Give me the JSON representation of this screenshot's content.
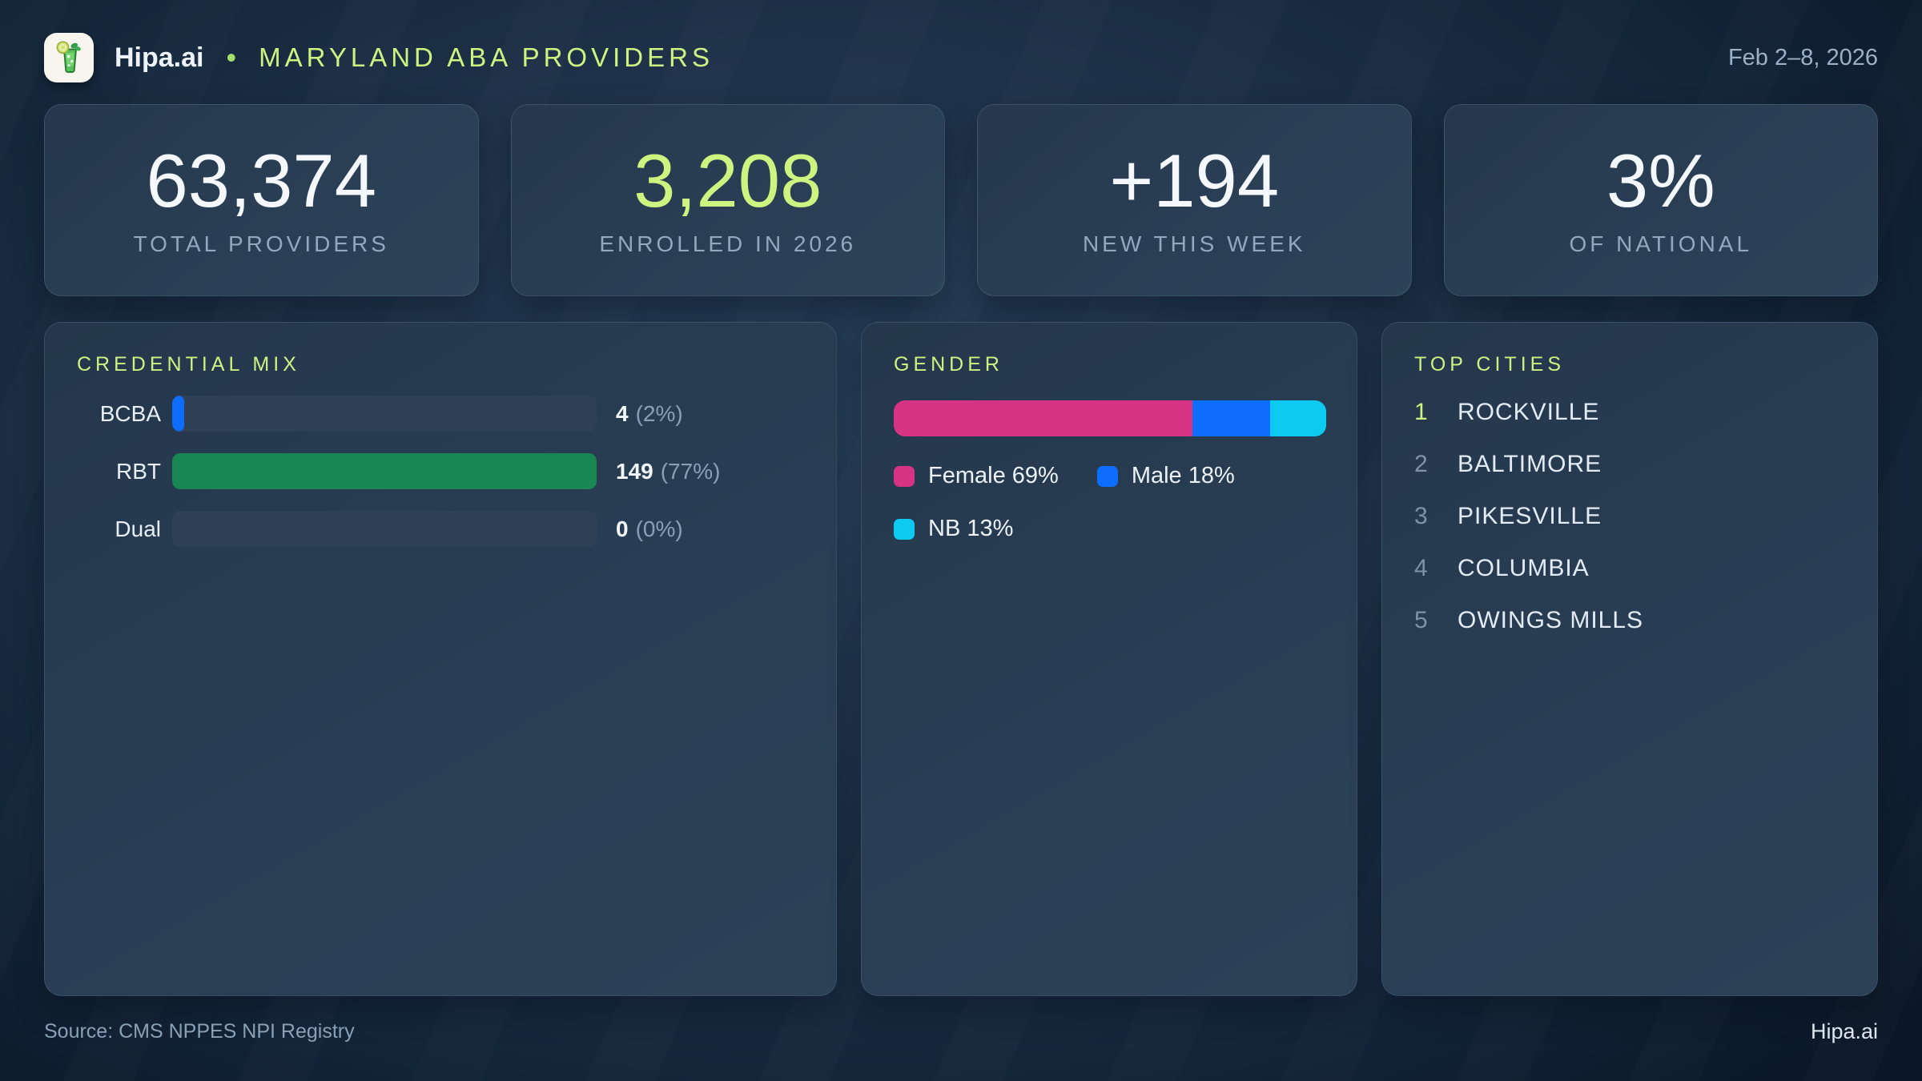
{
  "header": {
    "brand": "Hipa.ai",
    "separator": "•",
    "title": "MARYLAND ABA PROVIDERS",
    "date_range": "Feb 2–8, 2026"
  },
  "stats": [
    {
      "value": "63,374",
      "label": "TOTAL PROVIDERS"
    },
    {
      "value": "3,208",
      "label": "ENROLLED IN 2026"
    },
    {
      "value": "+194",
      "label": "NEW THIS WEEK"
    },
    {
      "value": "3%",
      "label": "OF NATIONAL"
    }
  ],
  "credential_mix": {
    "title": "CREDENTIAL MIX",
    "rows": [
      {
        "label": "BCBA",
        "value": "4",
        "pct": "(2%)",
        "width_pct": 2.8,
        "color": "#0d6efd"
      },
      {
        "label": "RBT",
        "value": "149",
        "pct": "(77%)",
        "width_pct": 100,
        "color": "#198754"
      },
      {
        "label": "Dual",
        "value": "0",
        "pct": "(0%)",
        "width_pct": 0,
        "color": "none"
      }
    ]
  },
  "gender": {
    "title": "GENDER",
    "segments": [
      {
        "name": "Female",
        "pct": 69,
        "legend_label": "Female 69%",
        "color": "#d63384"
      },
      {
        "name": "Male",
        "pct": 18,
        "legend_label": "Male 18%",
        "color": "#0d6efd"
      },
      {
        "name": "NB",
        "pct": 13,
        "legend_label": "NB 13%",
        "color": "#0dcaf0"
      }
    ]
  },
  "top_cities": {
    "title": "TOP CITIES",
    "items": [
      {
        "rank": "1",
        "name": "ROCKVILLE"
      },
      {
        "rank": "2",
        "name": "BALTIMORE"
      },
      {
        "rank": "3",
        "name": "PIKESVILLE"
      },
      {
        "rank": "4",
        "name": "COLUMBIA"
      },
      {
        "rank": "5",
        "name": "OWINGS MILLS"
      }
    ]
  },
  "footer": {
    "source": "Source: CMS NPPES NPI Registry",
    "brand": "Hipa.ai"
  },
  "colors": {
    "accent_green": "#cdf381",
    "bar_blue": "#0d6efd",
    "bar_green": "#198754",
    "pink": "#d63384",
    "cyan": "#0dcaf0",
    "muted_label": "#93a8be"
  },
  "chart_data": [
    {
      "type": "bar",
      "orientation": "horizontal",
      "title": "CREDENTIAL MIX",
      "categories": [
        "BCBA",
        "RBT",
        "Dual"
      ],
      "values": [
        4,
        149,
        0
      ],
      "percents": [
        2,
        77,
        0
      ],
      "value_labels": [
        "4 (2%)",
        "149 (77%)",
        "0 (0%)"
      ],
      "bar_colors": [
        "#0d6efd",
        "#198754",
        "none"
      ],
      "scale_note": "bar lengths normalized to max value (149 = full track width)"
    },
    {
      "type": "bar",
      "variant": "stacked-horizontal-single",
      "title": "GENDER",
      "categories": [
        "Female",
        "Male",
        "NB"
      ],
      "values": [
        69,
        18,
        13
      ],
      "unit": "percent",
      "colors": [
        "#d63384",
        "#0d6efd",
        "#0dcaf0"
      ],
      "legend": [
        "Female 69%",
        "Male 18%",
        "NB 13%"
      ],
      "legend_position": "below"
    },
    {
      "type": "table",
      "title": "TOP CITIES",
      "columns": [
        "rank",
        "city"
      ],
      "rows": [
        [
          1,
          "ROCKVILLE"
        ],
        [
          2,
          "BALTIMORE"
        ],
        [
          3,
          "PIKESVILLE"
        ],
        [
          4,
          "COLUMBIA"
        ],
        [
          5,
          "OWINGS MILLS"
        ]
      ]
    }
  ]
}
